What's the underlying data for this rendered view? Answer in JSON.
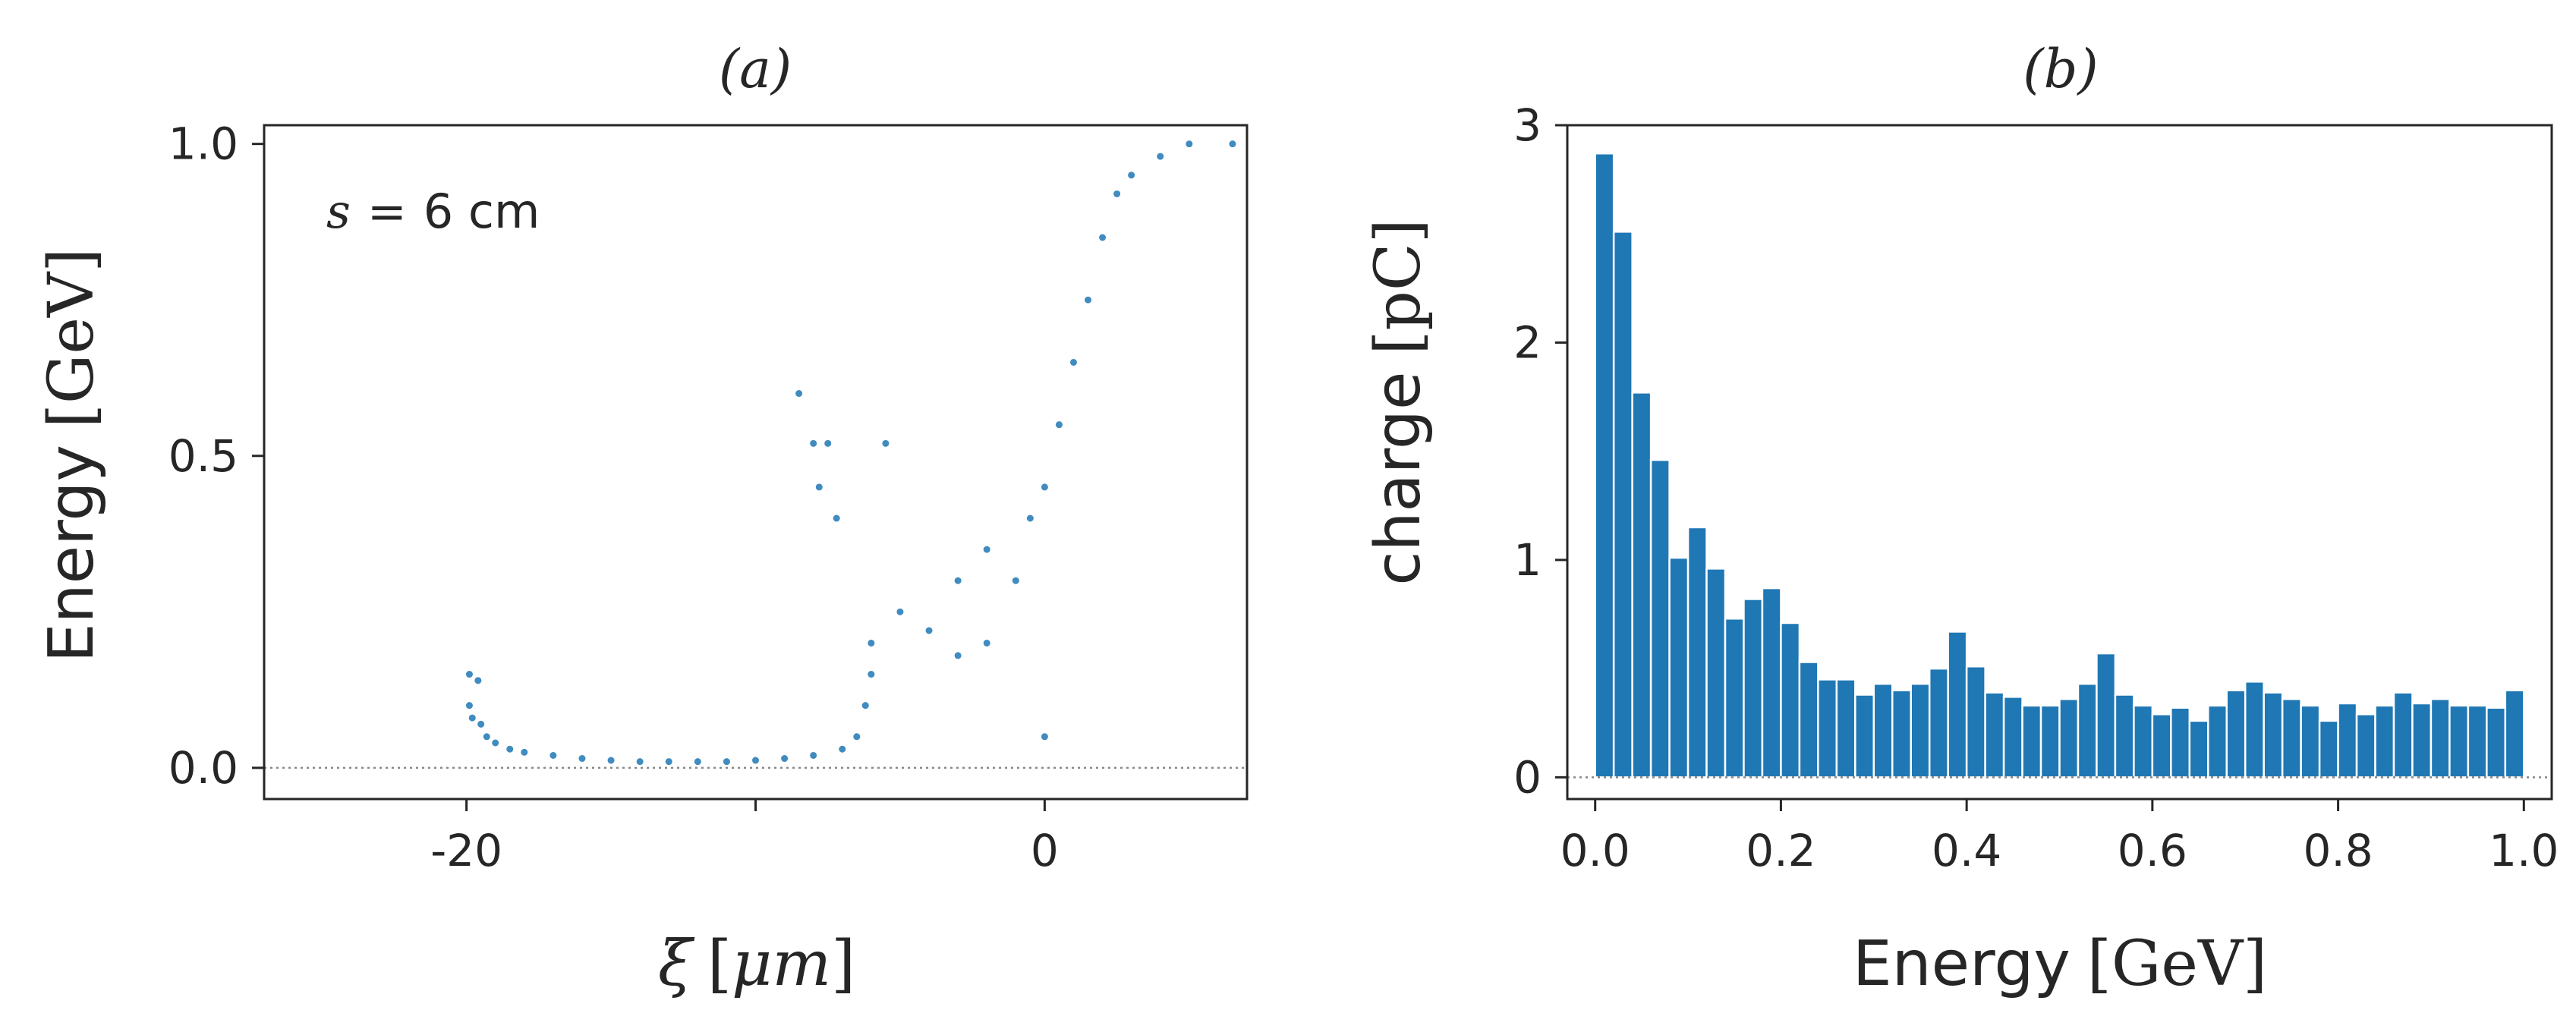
{
  "chart_data": [
    {
      "id": "a",
      "type": "scatter",
      "title": "(a)",
      "annotation": {
        "lhs": "s",
        "op": "=",
        "rhs": "6 cm"
      },
      "xlabel": {
        "symbol": "ξ",
        "unit_open": "[",
        "unit": "μm",
        "unit_close": "]"
      },
      "ylabel": {
        "text": "Energy",
        "unit": "[GeV]"
      },
      "xlim": [
        -27,
        7
      ],
      "ylim": [
        -0.05,
        1.03
      ],
      "xticks": [
        -20,
        -10,
        0
      ],
      "xtick_labels": [
        "-20",
        "",
        "0"
      ],
      "yticks": [
        0.0,
        0.5,
        1.0
      ],
      "ytick_labels": [
        "0.0",
        "0.5",
        "1.0"
      ],
      "color": "#1f77b4",
      "reference_line_y": 0.0,
      "series_description": "particle distribution",
      "points": [
        [
          -19.9,
          0.15
        ],
        [
          -19.9,
          0.1
        ],
        [
          -19.8,
          0.08
        ],
        [
          -19.6,
          0.14
        ],
        [
          -19.5,
          0.07
        ],
        [
          -19.3,
          0.05
        ],
        [
          -19.0,
          0.04
        ],
        [
          -18.5,
          0.03
        ],
        [
          -18.0,
          0.025
        ],
        [
          -17.0,
          0.02
        ],
        [
          -16.0,
          0.015
        ],
        [
          -15.0,
          0.012
        ],
        [
          -14.0,
          0.01
        ],
        [
          -13.0,
          0.01
        ],
        [
          -12.0,
          0.01
        ],
        [
          -11.0,
          0.01
        ],
        [
          -10.0,
          0.012
        ],
        [
          -9.0,
          0.015
        ],
        [
          -8.0,
          0.02
        ],
        [
          -7.0,
          0.03
        ],
        [
          -6.5,
          0.05
        ],
        [
          -6.2,
          0.1
        ],
        [
          -6.0,
          0.15
        ],
        [
          -6.0,
          0.2
        ],
        [
          -8.5,
          0.6
        ],
        [
          -8.0,
          0.52
        ],
        [
          -7.8,
          0.45
        ],
        [
          -7.5,
          0.52
        ],
        [
          -7.2,
          0.4
        ],
        [
          -5.5,
          0.52
        ],
        [
          -5.0,
          0.25
        ],
        [
          -4.0,
          0.22
        ],
        [
          -3.0,
          0.3
        ],
        [
          -3.0,
          0.18
        ],
        [
          -2.0,
          0.35
        ],
        [
          -2.0,
          0.2
        ],
        [
          -1.0,
          0.3
        ],
        [
          -0.5,
          0.4
        ],
        [
          0.0,
          0.45
        ],
        [
          0.0,
          0.05
        ],
        [
          0.5,
          0.55
        ],
        [
          1.0,
          0.65
        ],
        [
          1.5,
          0.75
        ],
        [
          2.0,
          0.85
        ],
        [
          2.5,
          0.92
        ],
        [
          3.0,
          0.95
        ],
        [
          4.0,
          0.98
        ],
        [
          5.0,
          1.0
        ],
        [
          6.5,
          1.0
        ]
      ]
    },
    {
      "id": "b",
      "type": "bar",
      "title": "(b)",
      "xlabel": {
        "text": "Energy",
        "unit": "[GeV]"
      },
      "ylabel": {
        "text": "charge",
        "unit": "[pC]"
      },
      "xlim": [
        -0.03,
        1.03
      ],
      "ylim": [
        -0.1,
        3.0
      ],
      "xticks": [
        0.0,
        0.2,
        0.4,
        0.6,
        0.8,
        1.0
      ],
      "xtick_labels": [
        "0.0",
        "0.2",
        "0.4",
        "0.6",
        "0.8",
        "1.0"
      ],
      "yticks": [
        0,
        1,
        2,
        3
      ],
      "ytick_labels": [
        "0",
        "1",
        "2",
        "3"
      ],
      "color": "#1f77b4",
      "reference_line_y": 0,
      "bin_width": 0.02,
      "bin_starts": [
        0.0,
        0.02,
        0.04,
        0.06,
        0.08,
        0.1,
        0.12,
        0.14,
        0.16,
        0.18,
        0.2,
        0.22,
        0.24,
        0.26,
        0.28,
        0.3,
        0.32,
        0.34,
        0.36,
        0.38,
        0.4,
        0.42,
        0.44,
        0.46,
        0.48,
        0.5,
        0.52,
        0.54,
        0.56,
        0.58,
        0.6,
        0.62,
        0.64,
        0.66,
        0.68,
        0.7,
        0.72,
        0.74,
        0.76,
        0.78,
        0.8,
        0.82,
        0.84,
        0.86,
        0.88,
        0.9,
        0.92,
        0.94,
        0.96,
        0.98
      ],
      "values": [
        2.87,
        2.51,
        1.77,
        1.46,
        1.01,
        1.15,
        0.96,
        0.73,
        0.82,
        0.87,
        0.71,
        0.53,
        0.45,
        0.45,
        0.38,
        0.43,
        0.4,
        0.43,
        0.5,
        0.67,
        0.51,
        0.39,
        0.37,
        0.33,
        0.33,
        0.36,
        0.43,
        0.57,
        0.38,
        0.33,
        0.29,
        0.32,
        0.26,
        0.33,
        0.4,
        0.44,
        0.39,
        0.36,
        0.33,
        0.26,
        0.34,
        0.29,
        0.33,
        0.39,
        0.34,
        0.36,
        0.33,
        0.33,
        0.32,
        0.4
      ]
    }
  ]
}
